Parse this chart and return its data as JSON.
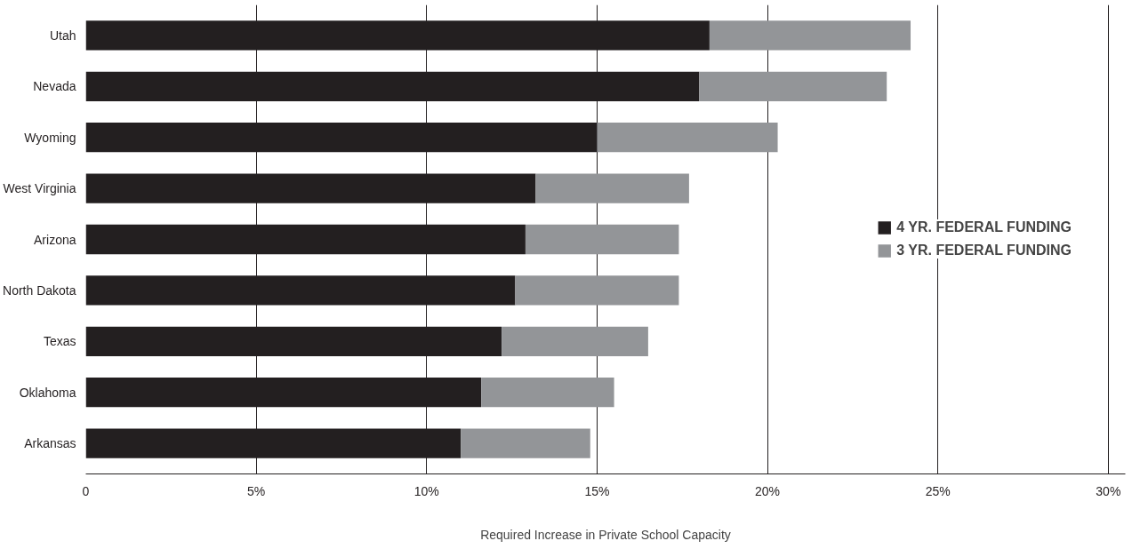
{
  "chart_data": {
    "type": "bar",
    "orientation": "horizontal",
    "stacked": true,
    "xlabel": "Required Increase in Private School Capacity",
    "categories": [
      "Utah",
      "Nevada",
      "Wyoming",
      "West Virginia",
      "Arizona",
      "North Dakota",
      "Texas",
      "Oklahoma",
      "Arkansas"
    ],
    "series": [
      {
        "name": "4 YR. FEDERAL FUNDING",
        "color": "#231f20",
        "values": [
          18.3,
          18.0,
          15.0,
          13.2,
          12.9,
          12.6,
          12.2,
          11.6,
          11.0
        ]
      },
      {
        "name": "3 YR. FEDERAL FUNDING",
        "color": "#939598",
        "values": [
          5.9,
          5.5,
          5.3,
          4.5,
          4.5,
          4.8,
          4.3,
          3.9,
          3.8
        ]
      }
    ],
    "xlim": [
      0,
      30.5
    ],
    "xticks": [
      0,
      {
        "value": 5,
        "label": "5%"
      },
      {
        "value": 10,
        "label": "10%"
      },
      {
        "value": 15,
        "label": "15%"
      },
      {
        "value": 20,
        "label": "20%"
      },
      {
        "value": 25,
        "label": "25%"
      },
      {
        "value": 30,
        "label": "30%"
      }
    ],
    "grid": "x",
    "legend": "right"
  }
}
